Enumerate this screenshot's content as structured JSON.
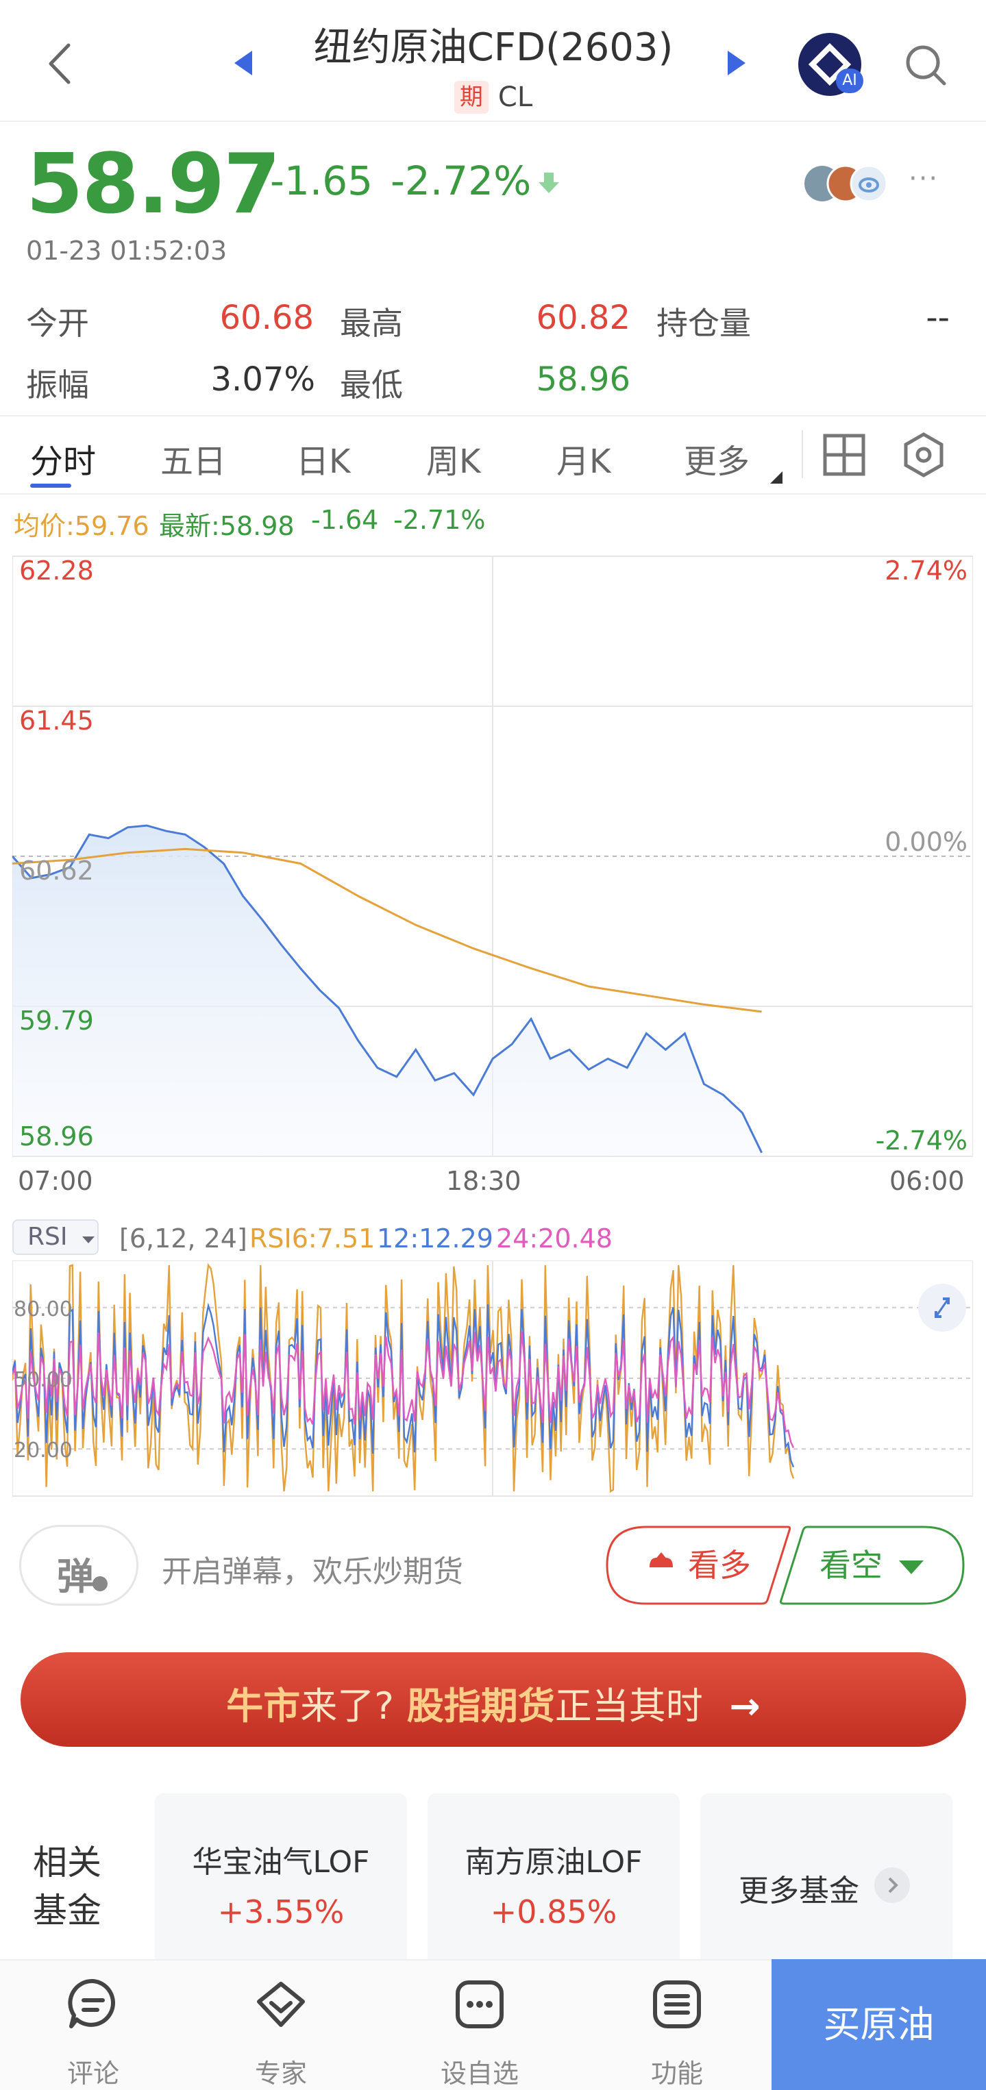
{
  "header": {
    "title": "纽约原油CFD(2603)",
    "tag": "期",
    "symbol": "CL",
    "ai_badge": "AI"
  },
  "quote": {
    "price": "58.97",
    "change": "-1.65",
    "change_pct": "-2.72%",
    "timestamp": "01-23 01:52:03",
    "more": "···"
  },
  "stats": {
    "open_label": "今开",
    "open_value": "60.68",
    "high_label": "最高",
    "high_value": "60.82",
    "oi_label": "持仓量",
    "oi_value": "--",
    "amp_label": "振幅",
    "amp_value": "3.07%",
    "low_label": "最低",
    "low_value": "58.96"
  },
  "tabs": [
    "分时",
    "五日",
    "日K",
    "周K",
    "月K",
    "更多"
  ],
  "legend": {
    "avg": "均价:59.76",
    "last": "最新:58.98",
    "chg": "-1.64",
    "pct": "-2.71%"
  },
  "chart_data": [
    {
      "type": "line",
      "y_ticks_left": [
        "62.28",
        "61.45",
        "60.62",
        "59.79",
        "58.96"
      ],
      "y_ticks_right": [
        "2.74%",
        "0.00%",
        "-2.74%"
      ],
      "x_ticks": [
        "07:00",
        "18:30",
        "06:00"
      ],
      "ylim": [
        58.96,
        62.28
      ],
      "reference": 60.62,
      "x_range": [
        0,
        100
      ],
      "series": [
        {
          "name": "最新",
          "color": "#4a7bd6",
          "x": [
            0,
            2,
            4,
            6,
            8,
            10,
            12,
            14,
            16,
            18,
            20,
            22,
            24,
            26,
            28,
            30,
            32,
            34,
            36,
            38,
            40,
            42,
            44,
            46,
            48,
            50,
            52,
            54,
            56,
            58,
            60,
            62,
            64,
            66,
            68,
            70,
            72,
            74,
            76,
            78
          ],
          "y": [
            60.62,
            60.5,
            60.52,
            60.56,
            60.74,
            60.72,
            60.78,
            60.79,
            60.76,
            60.74,
            60.67,
            60.58,
            60.4,
            60.27,
            60.13,
            60.0,
            59.88,
            59.78,
            59.6,
            59.45,
            59.4,
            59.55,
            59.38,
            59.42,
            59.3,
            59.5,
            59.58,
            59.72,
            59.5,
            59.55,
            59.44,
            59.5,
            59.45,
            59.64,
            59.55,
            59.64,
            59.36,
            59.3,
            59.2,
            58.98
          ]
        },
        {
          "name": "均价",
          "color": "#e5a23b",
          "x": [
            0,
            6,
            12,
            18,
            24,
            30,
            36,
            42,
            48,
            54,
            60,
            66,
            72,
            78
          ],
          "y": [
            60.58,
            60.6,
            60.64,
            60.66,
            60.64,
            60.58,
            60.4,
            60.24,
            60.11,
            60.0,
            59.9,
            59.85,
            59.8,
            59.76
          ]
        }
      ]
    },
    {
      "type": "line",
      "indicator": "RSI",
      "params": "[6,12, 24]",
      "y_ticks": [
        "80.00",
        "50.00",
        "20.00"
      ],
      "ylim": [
        0,
        100
      ],
      "series": [
        {
          "name": "RSI6",
          "label": "RSI6:7.51",
          "color": "#e5a23b",
          "last": 7.51
        },
        {
          "name": "12",
          "label": "12:12.29",
          "color": "#4a7bd6",
          "last": 12.29
        },
        {
          "name": "24",
          "label": "24:20.48",
          "color": "#e05bbd",
          "last": 20.48
        }
      ]
    }
  ],
  "rsi_select": "RSI",
  "danmu": {
    "icon_char": "弹",
    "text": "开启弹幕，欢乐炒期货"
  },
  "actions": {
    "bull": "看多",
    "bear": "看空"
  },
  "banner": {
    "p1": "牛市",
    "p2": "来了?",
    "p3": "股指期货",
    "p4": "正当其时",
    "arrow": "→"
  },
  "funds": {
    "label_1": "相关",
    "label_2": "基金",
    "items": [
      {
        "name": "华宝油气LOF",
        "pct": "+3.55%"
      },
      {
        "name": "南方原油LOF",
        "pct": "+0.85%"
      }
    ],
    "more": "更多基金"
  },
  "bottom_nav": {
    "comment": "评论",
    "expert": "专家",
    "watch": "设自选",
    "func": "功能",
    "buy": "买原油"
  }
}
